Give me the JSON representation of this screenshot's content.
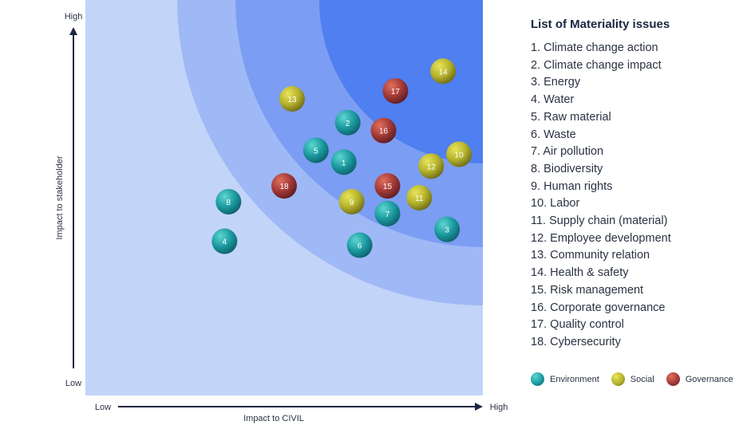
{
  "chart_data": {
    "type": "scatter",
    "xlabel": "Impact to CIVIL",
    "ylabel": "Impact to stakeholder",
    "x_low_label": "Low",
    "x_high_label": "High",
    "y_low_label": "Low",
    "y_high_label": "High",
    "xlim": [
      0,
      100
    ],
    "ylim": [
      0,
      100
    ],
    "grid": false,
    "legend_position": "bottom-right",
    "points": [
      {
        "id": "1",
        "x": 65,
        "y": 59,
        "category": "Environment"
      },
      {
        "id": "2",
        "x": 66,
        "y": 69,
        "category": "Environment"
      },
      {
        "id": "3",
        "x": 91,
        "y": 42,
        "category": "Environment"
      },
      {
        "id": "4",
        "x": 35,
        "y": 39,
        "category": "Environment"
      },
      {
        "id": "5",
        "x": 58,
        "y": 62,
        "category": "Environment"
      },
      {
        "id": "6",
        "x": 69,
        "y": 38,
        "category": "Environment"
      },
      {
        "id": "7",
        "x": 76,
        "y": 46,
        "category": "Environment"
      },
      {
        "id": "8",
        "x": 36,
        "y": 49,
        "category": "Environment"
      },
      {
        "id": "9",
        "x": 67,
        "y": 49,
        "category": "Social"
      },
      {
        "id": "10",
        "x": 94,
        "y": 61,
        "category": "Social"
      },
      {
        "id": "11",
        "x": 84,
        "y": 50,
        "category": "Social"
      },
      {
        "id": "12",
        "x": 87,
        "y": 58,
        "category": "Social"
      },
      {
        "id": "13",
        "x": 52,
        "y": 75,
        "category": "Social"
      },
      {
        "id": "14",
        "x": 90,
        "y": 82,
        "category": "Social"
      },
      {
        "id": "15",
        "x": 76,
        "y": 53,
        "category": "Governance"
      },
      {
        "id": "16",
        "x": 75,
        "y": 67,
        "category": "Governance"
      },
      {
        "id": "17",
        "x": 78,
        "y": 77,
        "category": "Governance"
      },
      {
        "id": "18",
        "x": 50,
        "y": 53,
        "category": "Governance"
      }
    ]
  },
  "list": {
    "title": "List of Materiality issues",
    "items": [
      "1. Climate change action",
      "2. Climate change impact",
      "3. Energy",
      "4. Water",
      "5. Raw material",
      "6. Waste",
      "7. Air pollution",
      "8. Biodiversity",
      "9. Human rights",
      "10. Labor",
      "11. Supply chain (material)",
      "12. Employee development",
      "13. Community relation",
      "14. Health & safety",
      "15. Risk management",
      "16. Corporate governance",
      "17. Quality control",
      "18. Cybersecurity"
    ]
  },
  "legend": [
    {
      "name": "Environment",
      "color": "#1b9aa0"
    },
    {
      "name": "Social",
      "color": "#b5b32c"
    },
    {
      "name": "Governance",
      "color": "#a33a36"
    }
  ],
  "colors": {
    "zone_1": "#c3d4f9",
    "zone_2": "#9fb9f6",
    "zone_3": "#7b9df3",
    "zone_4": "#4f7ff0",
    "axis": "#1b2740"
  }
}
